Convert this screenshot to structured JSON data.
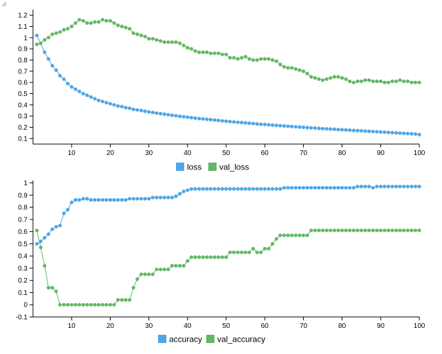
{
  "colors": {
    "series1": "#4ea6e8",
    "series2": "#63b866"
  },
  "chart_data": [
    {
      "type": "line",
      "title": "",
      "xlabel": "",
      "ylabel": "",
      "xlim": [
        0,
        100
      ],
      "ylim": [
        0.05,
        1.25
      ],
      "x_ticks": [
        10,
        20,
        30,
        40,
        50,
        60,
        70,
        80,
        90,
        100
      ],
      "y_ticks": [
        0.1,
        0.2,
        0.3,
        0.4,
        0.5,
        0.6,
        0.7,
        0.8,
        0.9,
        1,
        1.1,
        1.2
      ],
      "grid": false,
      "legend": "bottom",
      "series": [
        {
          "name": "loss",
          "color": "#4ea6e8",
          "x_start": 1,
          "values": [
            1.02,
            0.95,
            0.87,
            0.81,
            0.75,
            0.71,
            0.66,
            0.63,
            0.59,
            0.56,
            0.54,
            0.52,
            0.5,
            0.485,
            0.47,
            0.455,
            0.44,
            0.43,
            0.42,
            0.41,
            0.4,
            0.39,
            0.385,
            0.375,
            0.37,
            0.36,
            0.355,
            0.35,
            0.343,
            0.337,
            0.332,
            0.327,
            0.322,
            0.317,
            0.312,
            0.307,
            0.303,
            0.298,
            0.294,
            0.29,
            0.286,
            0.282,
            0.278,
            0.275,
            0.271,
            0.268,
            0.264,
            0.261,
            0.257,
            0.254,
            0.251,
            0.248,
            0.245,
            0.242,
            0.239,
            0.236,
            0.233,
            0.23,
            0.227,
            0.225,
            0.222,
            0.219,
            0.217,
            0.214,
            0.212,
            0.209,
            0.207,
            0.204,
            0.202,
            0.2,
            0.197,
            0.195,
            0.193,
            0.19,
            0.188,
            0.186,
            0.184,
            0.182,
            0.18,
            0.178,
            0.176,
            0.174,
            0.172,
            0.17,
            0.168,
            0.166,
            0.164,
            0.162,
            0.16,
            0.158,
            0.156,
            0.154,
            0.152,
            0.15,
            0.148,
            0.146,
            0.144,
            0.142,
            0.14,
            0.135
          ]
        },
        {
          "name": "val_loss",
          "color": "#63b866",
          "x_start": 1,
          "values": [
            0.94,
            0.95,
            0.98,
            1.0,
            1.03,
            1.04,
            1.05,
            1.07,
            1.08,
            1.1,
            1.13,
            1.16,
            1.15,
            1.13,
            1.13,
            1.14,
            1.14,
            1.16,
            1.15,
            1.15,
            1.13,
            1.11,
            1.1,
            1.09,
            1.08,
            1.04,
            1.03,
            1.02,
            1.01,
            0.99,
            0.99,
            0.98,
            0.97,
            0.96,
            0.96,
            0.96,
            0.96,
            0.95,
            0.93,
            0.91,
            0.9,
            0.88,
            0.87,
            0.87,
            0.87,
            0.86,
            0.86,
            0.86,
            0.85,
            0.85,
            0.82,
            0.82,
            0.81,
            0.82,
            0.83,
            0.81,
            0.8,
            0.8,
            0.81,
            0.81,
            0.81,
            0.8,
            0.79,
            0.76,
            0.74,
            0.73,
            0.73,
            0.72,
            0.71,
            0.7,
            0.68,
            0.65,
            0.64,
            0.63,
            0.62,
            0.63,
            0.64,
            0.65,
            0.65,
            0.64,
            0.63,
            0.61,
            0.6,
            0.61,
            0.61,
            0.62,
            0.62,
            0.61,
            0.61,
            0.61,
            0.6,
            0.6,
            0.61,
            0.61,
            0.62,
            0.61,
            0.61,
            0.6,
            0.6,
            0.6
          ]
        }
      ]
    },
    {
      "type": "line",
      "title": "",
      "xlabel": "",
      "ylabel": "",
      "xlim": [
        0,
        100
      ],
      "ylim": [
        -0.1,
        1.02
      ],
      "x_ticks": [
        10,
        20,
        30,
        40,
        50,
        60,
        70,
        80,
        90,
        100
      ],
      "y_ticks": [
        -0.1,
        0,
        0.1,
        0.2,
        0.3,
        0.4,
        0.5,
        0.6,
        0.7,
        0.8,
        0.9,
        1
      ],
      "grid": false,
      "legend": "bottom",
      "series": [
        {
          "name": "accuracy",
          "color": "#4ea6e8",
          "x_start": 1,
          "values": [
            0.5,
            0.52,
            0.55,
            0.58,
            0.62,
            0.64,
            0.65,
            0.75,
            0.78,
            0.84,
            0.86,
            0.86,
            0.87,
            0.87,
            0.86,
            0.86,
            0.86,
            0.86,
            0.86,
            0.86,
            0.86,
            0.86,
            0.86,
            0.86,
            0.87,
            0.87,
            0.87,
            0.87,
            0.87,
            0.87,
            0.88,
            0.88,
            0.88,
            0.88,
            0.88,
            0.88,
            0.89,
            0.91,
            0.93,
            0.94,
            0.95,
            0.95,
            0.95,
            0.95,
            0.95,
            0.95,
            0.95,
            0.95,
            0.95,
            0.95,
            0.95,
            0.95,
            0.95,
            0.95,
            0.95,
            0.95,
            0.95,
            0.95,
            0.95,
            0.95,
            0.95,
            0.95,
            0.95,
            0.95,
            0.96,
            0.96,
            0.96,
            0.96,
            0.96,
            0.96,
            0.96,
            0.96,
            0.96,
            0.96,
            0.96,
            0.96,
            0.96,
            0.96,
            0.96,
            0.96,
            0.96,
            0.96,
            0.96,
            0.97,
            0.97,
            0.97,
            0.97,
            0.96,
            0.97,
            0.97,
            0.97,
            0.97,
            0.97,
            0.97,
            0.97,
            0.97,
            0.97,
            0.97,
            0.97,
            0.97
          ]
        },
        {
          "name": "val_accuracy",
          "color": "#63b866",
          "x_start": 1,
          "values": [
            0.61,
            0.47,
            0.32,
            0.14,
            0.14,
            0.11,
            0.0,
            0.0,
            0.0,
            0.0,
            0.0,
            0.0,
            0.0,
            0.0,
            0.0,
            0.0,
            0.0,
            0.0,
            0.0,
            0.0,
            0.0,
            0.04,
            0.04,
            0.04,
            0.04,
            0.14,
            0.21,
            0.25,
            0.25,
            0.25,
            0.25,
            0.29,
            0.29,
            0.29,
            0.29,
            0.32,
            0.32,
            0.32,
            0.32,
            0.36,
            0.39,
            0.39,
            0.39,
            0.39,
            0.39,
            0.39,
            0.39,
            0.39,
            0.39,
            0.39,
            0.43,
            0.43,
            0.43,
            0.43,
            0.43,
            0.43,
            0.46,
            0.43,
            0.43,
            0.46,
            0.46,
            0.5,
            0.54,
            0.57,
            0.57,
            0.57,
            0.57,
            0.57,
            0.57,
            0.57,
            0.57,
            0.61,
            0.61,
            0.61,
            0.61,
            0.61,
            0.61,
            0.61,
            0.61,
            0.61,
            0.61,
            0.61,
            0.61,
            0.61,
            0.61,
            0.61,
            0.61,
            0.61,
            0.61,
            0.61,
            0.61,
            0.61,
            0.61,
            0.61,
            0.61,
            0.61,
            0.61,
            0.61,
            0.61,
            0.61
          ]
        }
      ]
    }
  ]
}
